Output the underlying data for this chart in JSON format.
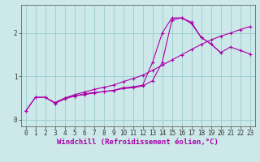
{
  "xlabel": "Windchill (Refroidissement éolien,°C)",
  "bg_color": "#cce8e8",
  "line_color": "#aa00aa",
  "grid_color": "#99cccc",
  "axis_line_color": "#666666",
  "xlim": [
    -0.5,
    23.5
  ],
  "ylim": [
    -0.15,
    2.65
  ],
  "xticks": [
    0,
    1,
    2,
    3,
    4,
    5,
    6,
    7,
    8,
    9,
    10,
    11,
    12,
    13,
    14,
    15,
    16,
    17,
    18,
    19,
    20,
    21,
    22,
    23
  ],
  "yticks": [
    0,
    1,
    2
  ],
  "line1_x": [
    0,
    1,
    2,
    3,
    4,
    5,
    6,
    7,
    8,
    9,
    10,
    11,
    12,
    13,
    14,
    15,
    16,
    17,
    18,
    19,
    20
  ],
  "line1_y": [
    0.2,
    0.52,
    0.52,
    0.38,
    0.48,
    0.55,
    0.58,
    0.62,
    0.65,
    0.68,
    0.72,
    0.74,
    0.78,
    0.9,
    1.32,
    2.3,
    2.35,
    2.22,
    1.9,
    1.75,
    1.55
  ],
  "line2_x": [
    0,
    1,
    2,
    3,
    4,
    5,
    6,
    7,
    8,
    9,
    10,
    11,
    12,
    13,
    14,
    15,
    16,
    17,
    18,
    19,
    20,
    21,
    22,
    23
  ],
  "line2_y": [
    0.2,
    0.52,
    0.52,
    0.4,
    0.5,
    0.55,
    0.6,
    0.63,
    0.65,
    0.68,
    0.74,
    0.76,
    0.8,
    1.32,
    2.0,
    2.35,
    2.35,
    2.25,
    1.9,
    1.75,
    1.55,
    1.68,
    1.6,
    1.52
  ],
  "line3_x": [
    3,
    4,
    5,
    6,
    7,
    8,
    9,
    10,
    11,
    12,
    13,
    14,
    15,
    16,
    17,
    18,
    19,
    20,
    21,
    22,
    23
  ],
  "line3_y": [
    0.38,
    0.5,
    0.58,
    0.64,
    0.7,
    0.75,
    0.8,
    0.88,
    0.95,
    1.03,
    1.14,
    1.26,
    1.38,
    1.5,
    1.62,
    1.74,
    1.84,
    1.93,
    2.0,
    2.08,
    2.15
  ],
  "xlabel_fontsize": 6.5,
  "tick_fontsize": 5.5,
  "marker_size": 2.5
}
